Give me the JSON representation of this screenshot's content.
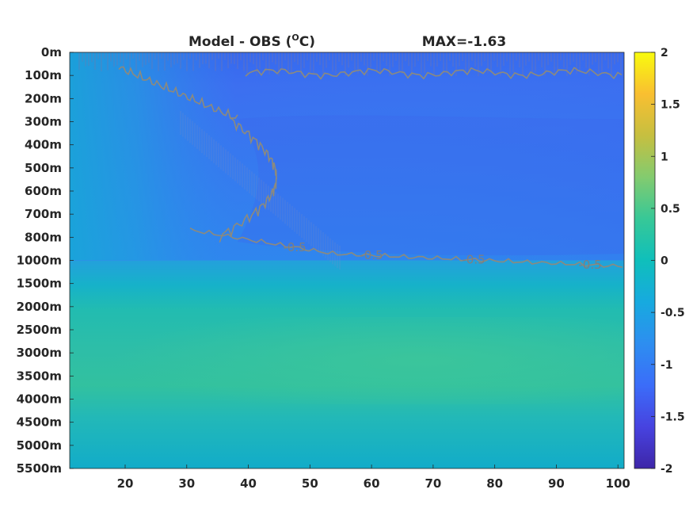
{
  "chart_data": {
    "type": "heatmap",
    "title_left": "Model - OBS (",
    "title_unit_sup": "O",
    "title_unit_end": "C)",
    "title_right": "MAX=-1.63",
    "x_ticks": [
      20,
      30,
      40,
      50,
      60,
      70,
      80,
      90,
      100
    ],
    "xlim": [
      11,
      101
    ],
    "y_tick_labels": [
      "0m",
      "100m",
      "200m",
      "300m",
      "400m",
      "500m",
      "600m",
      "700m",
      "800m",
      "1000m",
      "1500m",
      "2000m",
      "2500m",
      "3000m",
      "3500m",
      "4000m",
      "4500m",
      "5000m",
      "5500m"
    ],
    "colorbar": {
      "ticks": [
        "2",
        "1.5",
        "1",
        "0.5",
        "0",
        "-0.5",
        "-1",
        "-1.5",
        "-2"
      ],
      "range": [
        -2,
        2
      ],
      "colors": [
        "#3e26a8",
        "#4743e0",
        "#3b6df9",
        "#2d8ef0",
        "#17aadf",
        "#0fbfbb",
        "#37c897",
        "#83cb6f",
        "#c6bf40",
        "#f9bf31",
        "#f9fb0e"
      ]
    },
    "contour_labels": [
      "-0.5",
      "-0.5",
      "-0.5",
      "-0.5"
    ],
    "colors": {
      "deep_blue": "#3f64ec",
      "mid_blue": "#2f86ee",
      "teal": "#14afcf",
      "green": "#33c29e",
      "contour": "#8c8a7e"
    }
  }
}
